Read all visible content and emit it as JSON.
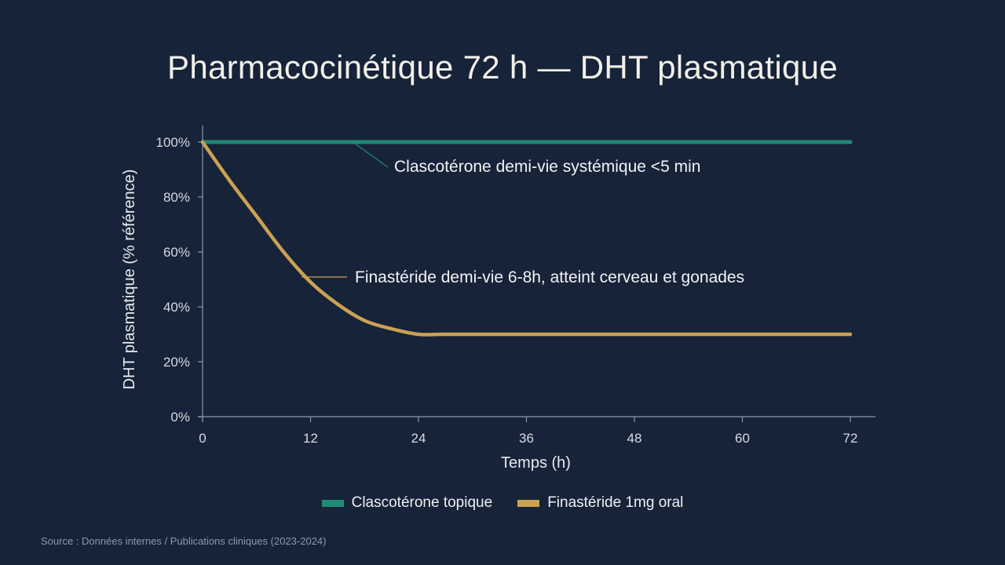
{
  "title": "Pharmacocinétique 72 h — DHT plasmatique",
  "source": "Source : Données internes / Publications cliniques (2023-2024)",
  "colors": {
    "background": "#172338",
    "clascoterone": "#1f8a74",
    "finasteride": "#c9a253",
    "axis": "#8d97a8"
  },
  "legend": [
    {
      "label": "Clascotérone topique",
      "color": "#1f8a74"
    },
    {
      "label": "Finastéride 1mg oral",
      "color": "#c9a253"
    }
  ],
  "annotations": {
    "clascoterone": "Clascotérone demi-vie systémique <5 min",
    "finasteride": "Finastéride demi-vie 6-8h, atteint cerveau et gonades"
  },
  "chart_data": {
    "type": "line",
    "title": "Pharmacocinétique 72 h — DHT plasmatique",
    "xlabel": "Temps (h)",
    "ylabel": "DHT plasmatique (% référence)",
    "xlim": [
      0,
      72
    ],
    "ylim": [
      0,
      100
    ],
    "x_ticks": [
      0,
      12,
      24,
      36,
      48,
      60,
      72
    ],
    "y_ticks": [
      "0%",
      "20%",
      "40%",
      "60%",
      "80%",
      "100%"
    ],
    "grid": false,
    "legend_position": "bottom",
    "series": [
      {
        "name": "Clascotérone topique",
        "color": "#1f8a74",
        "x": [
          0,
          12,
          24,
          36,
          48,
          60,
          72
        ],
        "y": [
          100,
          100,
          100,
          100,
          100,
          100,
          100
        ]
      },
      {
        "name": "Finastéride 1mg oral",
        "color": "#c9a253",
        "x": [
          0,
          3,
          6,
          9,
          12,
          15,
          18,
          21,
          24,
          27,
          36,
          48,
          60,
          72
        ],
        "y": [
          100,
          86,
          73,
          60,
          49,
          41,
          35,
          32,
          30,
          30,
          30,
          30,
          30,
          30
        ]
      }
    ],
    "annotations": [
      {
        "text": "Clascotérone demi-vie systémique <5 min",
        "series": "Clascotérone topique"
      },
      {
        "text": "Finastéride demi-vie 6-8h, atteint cerveau et gonades",
        "series": "Finastéride 1mg oral"
      }
    ]
  }
}
